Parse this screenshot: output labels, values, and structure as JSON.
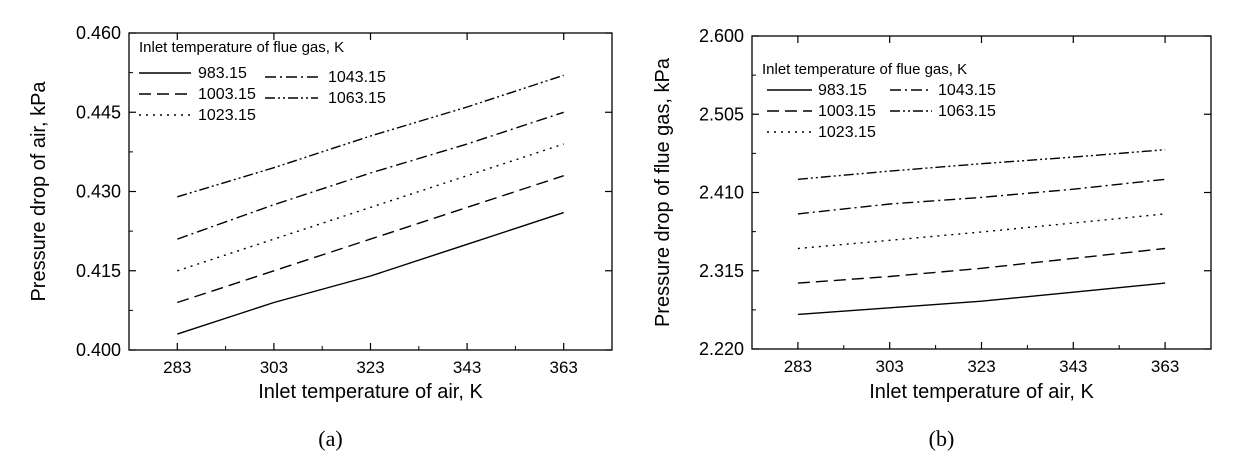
{
  "chart_data": [
    {
      "type": "line",
      "caption": "(a)",
      "xlabel": "Inlet temperature of air, K",
      "ylabel": "Pressure drop of air, kPa",
      "xlim": [
        273,
        373
      ],
      "ylim": [
        0.4,
        0.46
      ],
      "xticks": [
        283,
        303,
        323,
        343,
        363
      ],
      "yticks": [
        0.4,
        0.415,
        0.43,
        0.445,
        0.46
      ],
      "xtick_labels": [
        "283",
        "303",
        "323",
        "343",
        "363"
      ],
      "ytick_labels": [
        "0.400",
        "0.415",
        "0.430",
        "0.445",
        "0.460"
      ],
      "grid": false,
      "legend": {
        "title": "Inlet temperature of flue gas, K",
        "placement": "top-left",
        "columns": 2
      },
      "series": [
        {
          "name": "983.15",
          "style": "solid",
          "x": [
            283,
            303,
            323,
            343,
            363
          ],
          "y": [
            0.403,
            0.409,
            0.414,
            0.42,
            0.426
          ]
        },
        {
          "name": "1003.15",
          "style": "dashed",
          "x": [
            283,
            303,
            323,
            343,
            363
          ],
          "y": [
            0.409,
            0.415,
            0.421,
            0.427,
            0.433
          ]
        },
        {
          "name": "1023.15",
          "style": "dotted",
          "x": [
            283,
            303,
            323,
            343,
            363
          ],
          "y": [
            0.415,
            0.421,
            0.427,
            0.433,
            0.439
          ]
        },
        {
          "name": "1043.15",
          "style": "dash-dot",
          "x": [
            283,
            303,
            323,
            343,
            363
          ],
          "y": [
            0.421,
            0.4275,
            0.4335,
            0.439,
            0.445
          ]
        },
        {
          "name": "1063.15",
          "style": "dash-dot-dot",
          "x": [
            283,
            303,
            323,
            343,
            363
          ],
          "y": [
            0.429,
            0.4345,
            0.4405,
            0.446,
            0.452
          ]
        }
      ]
    },
    {
      "type": "line",
      "caption": "(b)",
      "xlabel": "Inlet temperature of air, K",
      "ylabel": "Pressure drop of flue gas, kPa",
      "xlim": [
        273,
        373
      ],
      "ylim": [
        2.22,
        2.6
      ],
      "xticks": [
        283,
        303,
        323,
        343,
        363
      ],
      "yticks": [
        2.22,
        2.315,
        2.41,
        2.505,
        2.6
      ],
      "xtick_labels": [
        "283",
        "303",
        "323",
        "343",
        "363"
      ],
      "ytick_labels": [
        "2.220",
        "2.315",
        "2.410",
        "2.505",
        "2.600"
      ],
      "grid": false,
      "legend": {
        "title": "Inlet temperature of flue gas, K",
        "placement": "top-left",
        "columns": 2
      },
      "series": [
        {
          "name": "983.15",
          "style": "solid",
          "x": [
            283,
            303,
            323,
            343,
            363
          ],
          "y": [
            2.262,
            2.27,
            2.278,
            2.289,
            2.3
          ]
        },
        {
          "name": "1003.15",
          "style": "dashed",
          "x": [
            283,
            303,
            323,
            343,
            363
          ],
          "y": [
            2.3,
            2.308,
            2.318,
            2.33,
            2.342
          ]
        },
        {
          "name": "1023.15",
          "style": "dotted",
          "x": [
            283,
            303,
            323,
            343,
            363
          ],
          "y": [
            2.342,
            2.352,
            2.362,
            2.373,
            2.384
          ]
        },
        {
          "name": "1043.15",
          "style": "dash-dot",
          "x": [
            283,
            303,
            323,
            343,
            363
          ],
          "y": [
            2.384,
            2.396,
            2.404,
            2.414,
            2.426
          ]
        },
        {
          "name": "1063.15",
          "style": "dash-dot-dot",
          "x": [
            283,
            303,
            323,
            343,
            363
          ],
          "y": [
            2.426,
            2.436,
            2.445,
            2.453,
            2.462
          ]
        }
      ]
    }
  ]
}
